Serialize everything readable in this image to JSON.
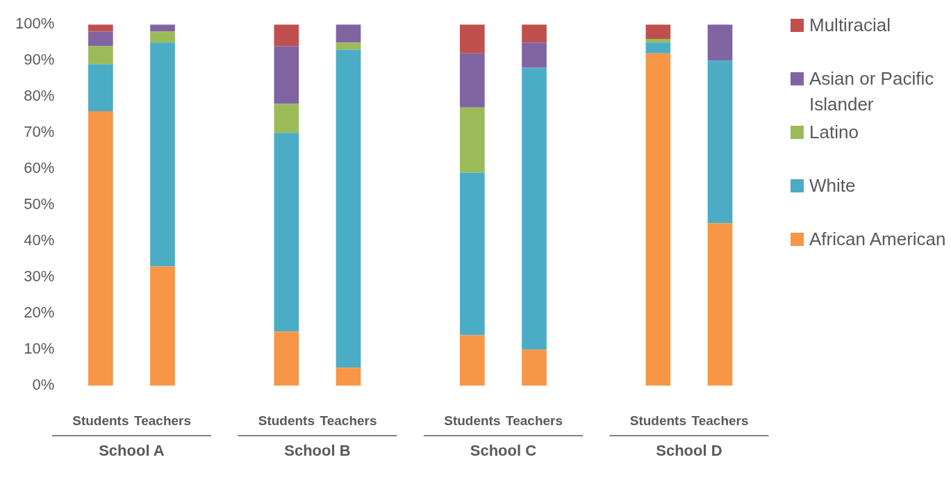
{
  "chart_data": {
    "type": "bar",
    "stacked": true,
    "categories": [
      "Students",
      "Teachers",
      null,
      "Students",
      "Teachers",
      null,
      "Students",
      "Teachers",
      null,
      "Students",
      "Teachers"
    ],
    "series": [
      {
        "name": "African American",
        "color": "#f79646",
        "values": [
          76,
          33,
          null,
          15,
          5,
          null,
          14,
          10,
          null,
          92,
          45
        ]
      },
      {
        "name": "White",
        "color": "#4bacc6",
        "values": [
          13,
          62,
          null,
          55,
          88,
          null,
          45,
          78,
          null,
          3,
          45
        ]
      },
      {
        "name": "Latino",
        "color": "#9bbb59",
        "values": [
          5,
          3,
          null,
          8,
          2,
          null,
          18,
          0,
          null,
          1,
          0
        ]
      },
      {
        "name": "Asian or Pacific Islander",
        "color": "#8064a2",
        "values": [
          4,
          2,
          null,
          16,
          5,
          null,
          15,
          7,
          null,
          0,
          10
        ]
      },
      {
        "name": "Multiracial",
        "color": "#c0504d",
        "values": [
          2,
          0,
          null,
          6,
          0,
          null,
          8,
          5,
          null,
          4,
          0
        ]
      }
    ],
    "ylim": [
      0,
      100
    ],
    "yticks": [
      {
        "value": 0,
        "label": "0%"
      },
      {
        "value": 10,
        "label": "10%"
      },
      {
        "value": 20,
        "label": "20%"
      },
      {
        "value": 30,
        "label": "30%"
      },
      {
        "value": 40,
        "label": "40%"
      },
      {
        "value": 50,
        "label": "50%"
      },
      {
        "value": 60,
        "label": "60%"
      },
      {
        "value": 70,
        "label": "70%"
      },
      {
        "value": 80,
        "label": "80%"
      },
      {
        "value": 90,
        "label": "90%"
      },
      {
        "value": 100,
        "label": "100%"
      }
    ],
    "annotations": [
      "School A",
      "School B",
      "School C",
      "School D"
    ],
    "grid": false,
    "legend": "right"
  }
}
